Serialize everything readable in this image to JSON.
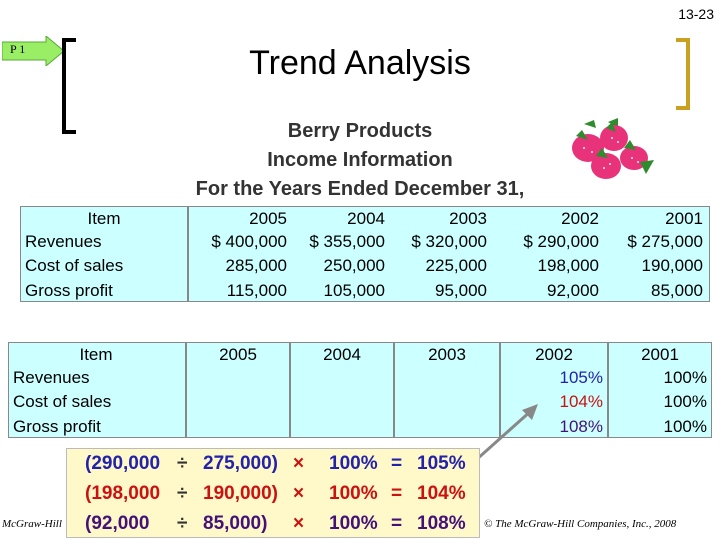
{
  "slide_number": "13-23",
  "tag": "P 1",
  "title": "Trend Analysis",
  "subtitle": {
    "company": "Berry Products",
    "statement": "Income Information",
    "period": "For the Years Ended December 31,"
  },
  "top_table": {
    "header_item": "Item",
    "years": [
      "2005",
      "2004",
      "2003",
      "2002",
      "2001"
    ],
    "row_labels": [
      "Revenues",
      "Cost of sales",
      "Gross profit"
    ],
    "rows": [
      [
        "$ 400,000",
        "$ 355,000",
        "$ 320,000",
        "$ 290,000",
        "$ 275,000"
      ],
      [
        "285,000",
        "250,000",
        "225,000",
        "198,000",
        "190,000"
      ],
      [
        "115,000",
        "105,000",
        "95,000",
        "92,000",
        "85,000"
      ]
    ]
  },
  "bottom_table": {
    "header_item": "Item",
    "years": [
      "2005",
      "2004",
      "2003",
      "2002",
      "2001"
    ],
    "row_labels": [
      "Revenues",
      "Cost of sales",
      "Gross profit"
    ],
    "col_2002": [
      "105%",
      "104%",
      "108%"
    ],
    "col_2001": [
      "100%",
      "100%",
      "100%"
    ]
  },
  "calculations": [
    {
      "num": "(290,000",
      "div": "÷",
      "den": "275,000)",
      "times": "×",
      "hundred": "100%",
      "eq": "=",
      "result": "105%",
      "color": "#2222aa"
    },
    {
      "num": "(198,000",
      "div": "÷",
      "den": "190,000)",
      "times": "×",
      "hundred": "100%",
      "eq": "=",
      "result": "104%",
      "color": "#cc1111"
    },
    {
      "num": "(92,000",
      "div": "÷",
      "den": "85,000)",
      "times": "×",
      "hundred": "100%",
      "eq": "=",
      "result": "108%",
      "color": "#441177"
    }
  ],
  "footer_left": "McGraw-Hill",
  "footer_right": "© The McGraw-Hill Companies, Inc., 2008",
  "colors": {
    "panel": "#ccffff",
    "calc_bg": "#fff8c8",
    "arrow_tag": "#99ee66",
    "bracket_right": "#c9a020"
  }
}
